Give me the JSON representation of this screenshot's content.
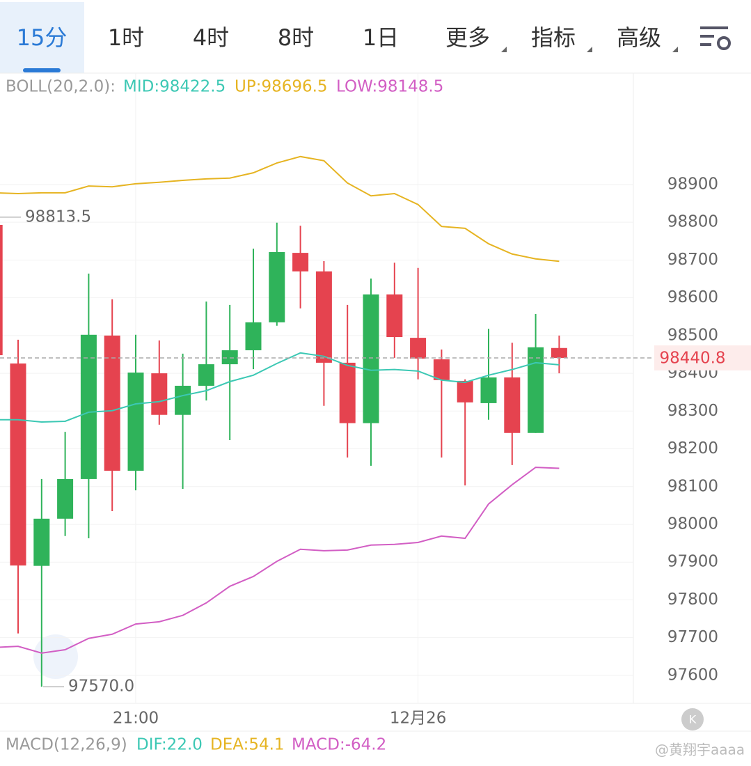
{
  "tabs": [
    "15分",
    "1时",
    "4时",
    "8时",
    "1日",
    "更多",
    "指标",
    "高级"
  ],
  "boll_header": {
    "name": "BOLL(20,2.0):",
    "mid": "MID:98422.5",
    "up": "UP:98696.5",
    "low": "LOW:98148.5"
  },
  "macd_header": {
    "name": "MACD(12,26,9)",
    "dif": "DIF:22.0",
    "dea": "DEA:54.1",
    "macd": "MACD:-64.2"
  },
  "watermark": "@黄翔宇aaaa",
  "chart_data": {
    "type": "candlestick",
    "categories": [
      null,
      null,
      null,
      null,
      null,
      null,
      "21:00",
      null,
      null,
      null,
      null,
      null,
      null,
      null,
      null,
      null,
      null,
      null,
      "12月26",
      null,
      null,
      null,
      null,
      null,
      null
    ],
    "open": [
      98793,
      98426,
      97890,
      98015,
      98120,
      98500,
      98142,
      98400,
      98290,
      98367,
      98424,
      98461,
      98535,
      98719,
      98670,
      98428,
      98268,
      98609,
      98494,
      98437,
      98380,
      98321,
      98389,
      98242,
      98467
    ],
    "high": [
      98813.5,
      98489,
      98120,
      98245,
      98664,
      98596,
      98502,
      98487,
      98452,
      98590,
      98581,
      98730,
      98799,
      98791,
      98697,
      98581,
      98651,
      98693,
      98679,
      98463,
      98384,
      98518,
      98481,
      98557,
      98500
    ],
    "low": [
      98440,
      97711,
      97570,
      97969,
      97963,
      98035,
      98090,
      98264,
      98094,
      98328,
      98223,
      98411,
      98526,
      98572,
      98314,
      98177,
      98155,
      98441,
      98384,
      98177,
      98103,
      98277,
      98157,
      98242,
      98400
    ],
    "close": [
      98448,
      97891,
      98015,
      98120,
      98502,
      98142,
      98402,
      98290,
      98367,
      98424,
      98461,
      98535,
      98721,
      98670,
      98428,
      98268,
      98609,
      98496,
      98439,
      98382,
      98323,
      98389,
      98242,
      98469,
      98440.8
    ],
    "up_color": "#2fb35a",
    "down_color": "#e5434f",
    "series": [
      {
        "name": "UP",
        "color": "#e6b422",
        "values": [
          98878,
          98876,
          98878,
          98878,
          98896,
          98894,
          98902,
          98906,
          98911,
          98915,
          98917,
          98931,
          98957,
          98974,
          98963,
          98904,
          98870,
          98876,
          98847,
          98789,
          98784,
          98743,
          98716,
          98703,
          98696.5
        ]
      },
      {
        "name": "MID",
        "color": "#3cc8b4",
        "values": [
          98277,
          98277,
          98271,
          98273,
          98297,
          98301,
          98319,
          98325,
          98341,
          98354,
          98378,
          98395,
          98426,
          98454,
          98445,
          98421,
          98408,
          98410,
          98406,
          98382,
          98376,
          98395,
          98410,
          98428,
          98422.5
        ]
      },
      {
        "name": "LOW",
        "color": "#d25ec4",
        "values": [
          97674,
          97677,
          97659,
          97668,
          97698,
          97709,
          97736,
          97742,
          97759,
          97792,
          97836,
          97862,
          97902,
          97934,
          97930,
          97932,
          97945,
          97947,
          97952,
          97969,
          97963,
          98054,
          98105,
          98151,
          98148.5
        ]
      }
    ],
    "current_price": 98440.8,
    "annotations": [
      {
        "value": 98813.5,
        "label": "98813.5"
      },
      {
        "value": 97570,
        "label": "97570.0"
      }
    ],
    "ylim": [
      97526,
      99195
    ],
    "yticks": [
      97600,
      97700,
      97800,
      97900,
      98000,
      98100,
      98200,
      98300,
      98400,
      98500,
      98600,
      98700,
      98800,
      98900
    ],
    "grid": true
  }
}
